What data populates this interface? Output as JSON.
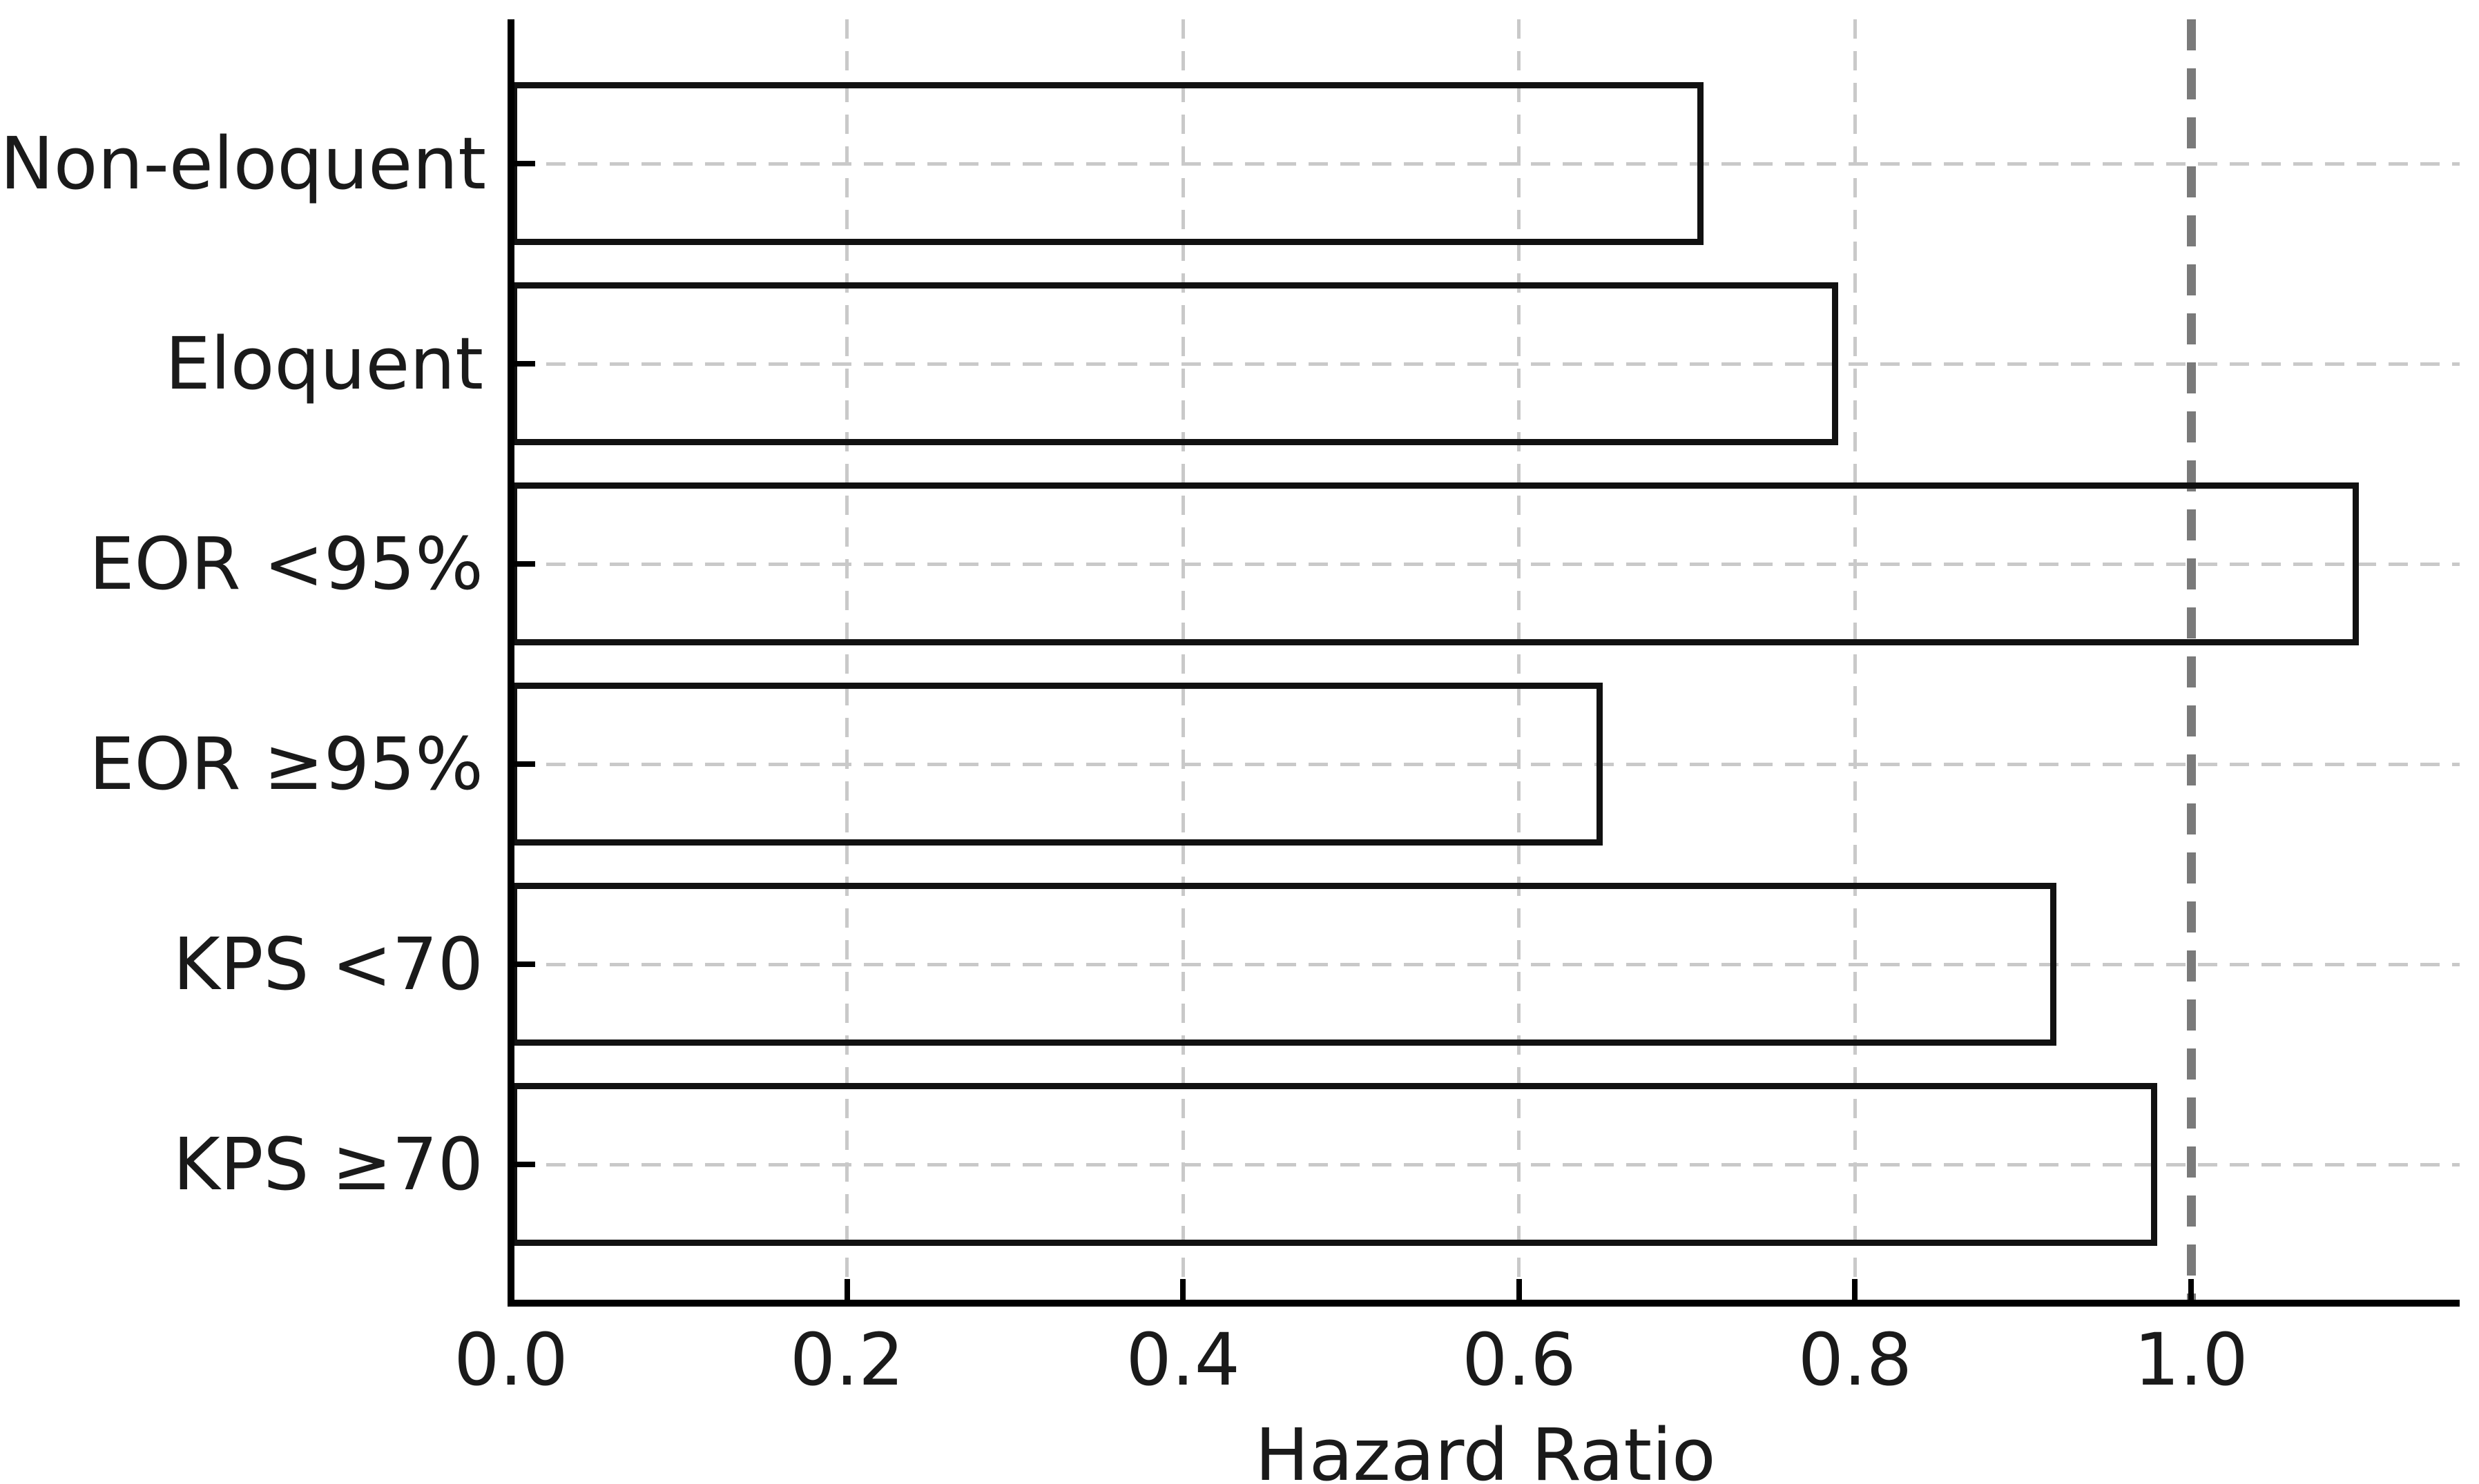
{
  "chart_data": {
    "type": "bar",
    "orientation": "horizontal",
    "title": "",
    "xlabel": "Hazard Ratio",
    "ylabel": "",
    "categories": [
      "Non-eloquent",
      "Eloquent",
      "EOR <95%",
      "EOR ≥95%",
      "KPS <70",
      "KPS ≥70"
    ],
    "values": [
      0.71,
      0.79,
      1.1,
      0.65,
      0.92,
      0.98
    ],
    "xlim": [
      0.0,
      1.16
    ],
    "xticks": [
      0.0,
      0.2,
      0.4,
      0.6,
      0.8,
      1.0
    ],
    "xtick_labels": [
      "0.0",
      "0.2",
      "0.4",
      "0.6",
      "0.8",
      "1.0"
    ],
    "reference_line_x": 1.0,
    "grid": true,
    "legend": null,
    "colors": {
      "background": "#ffffff",
      "bar_fill": "transparent",
      "bar_edge": "#111111",
      "gridline": "#c9c9c9",
      "reference_line": "#7a7a7a",
      "spine": "#000000",
      "text": "#1a1a1a"
    }
  }
}
